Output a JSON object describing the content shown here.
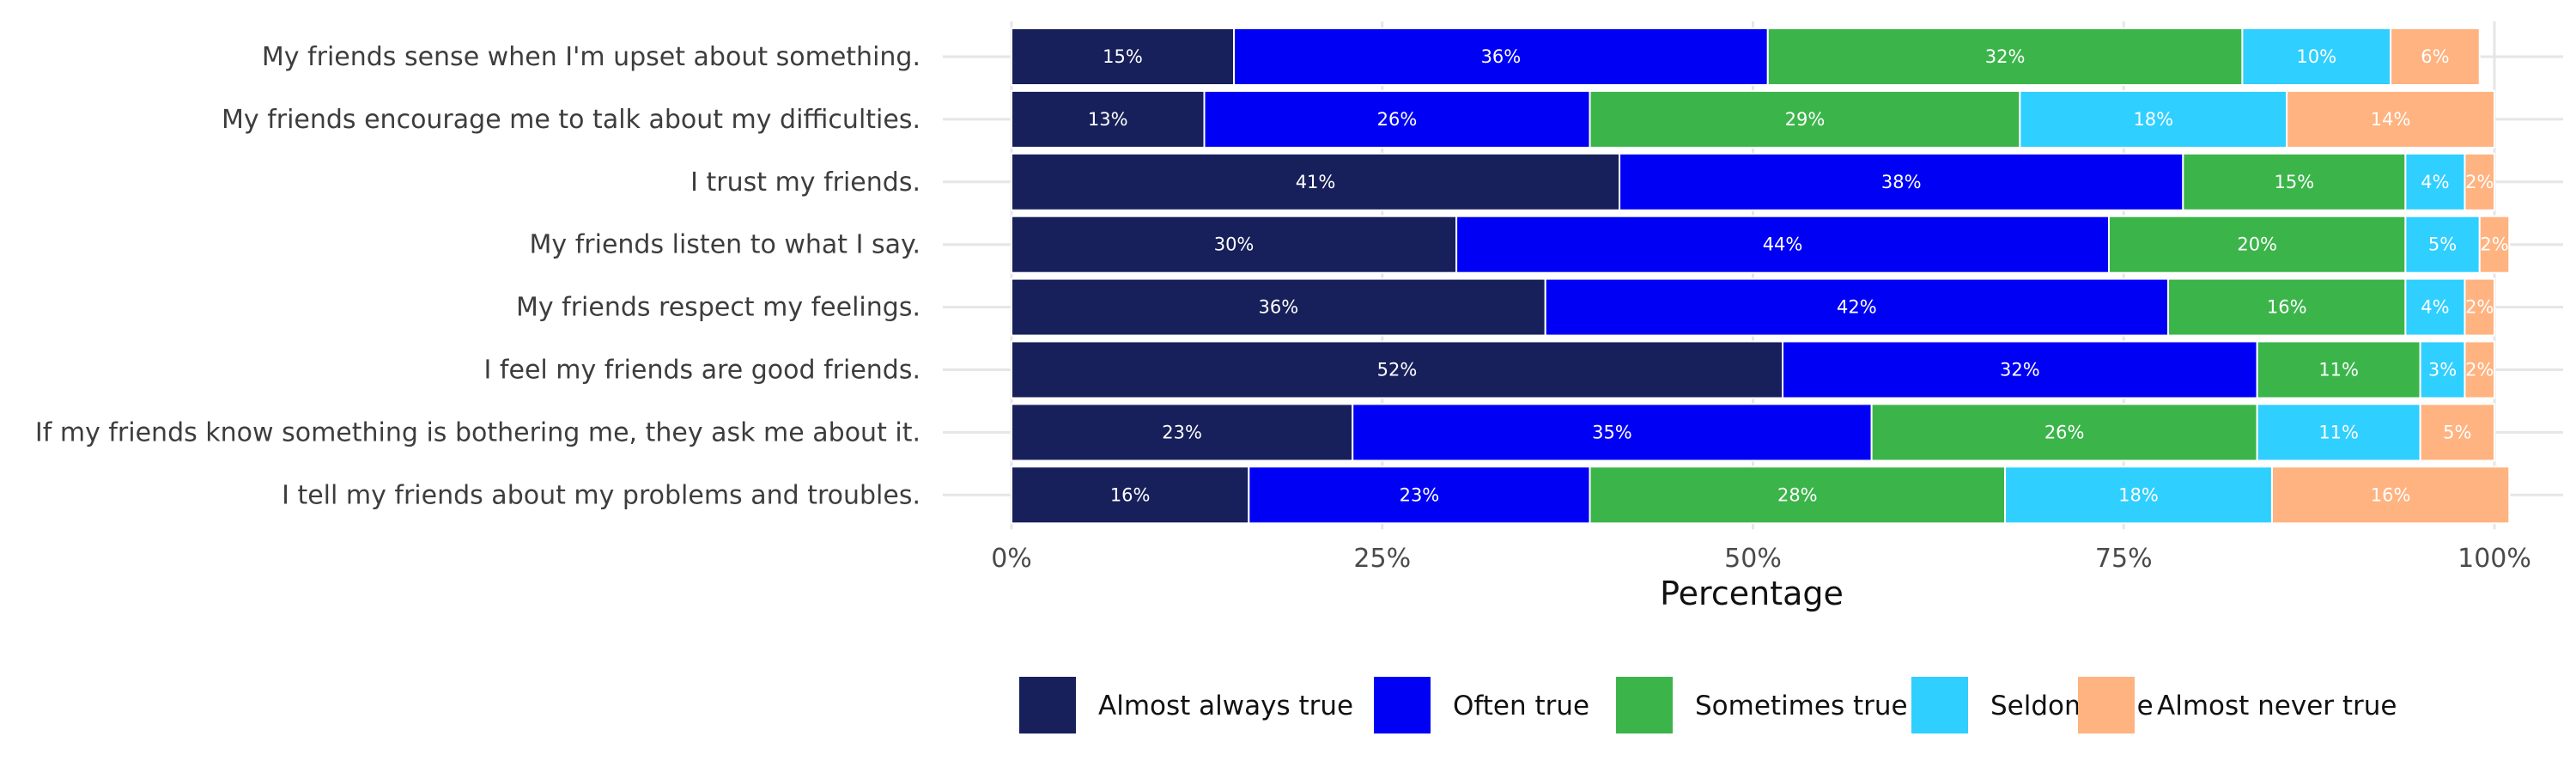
{
  "chart_data": {
    "type": "bar",
    "orientation": "horizontal",
    "stacked": true,
    "xlabel": "Percentage",
    "ylabel": "",
    "xlim": [
      0,
      100
    ],
    "x_ticks": [
      {
        "value": 0,
        "label": "0%"
      },
      {
        "value": 25,
        "label": "25%"
      },
      {
        "value": 50,
        "label": "50%"
      },
      {
        "value": 75,
        "label": "75%"
      },
      {
        "value": 100,
        "label": "100%"
      }
    ],
    "legend_position": "bottom",
    "categories": [
      "My friends sense when I'm upset about something.",
      "My friends encourage me to talk about my difficulties.",
      "I trust my friends.",
      "My friends listen to what I say.",
      "My friends respect my feelings.",
      "I feel my friends are good friends.",
      "If my friends know something is bothering me, they ask me about it.",
      "I tell my friends about my problems and troubles."
    ],
    "series": [
      {
        "name": "Almost always true",
        "color": "#17205a",
        "values": [
          15,
          13,
          41,
          30,
          36,
          52,
          23,
          16
        ],
        "labels": [
          "15%",
          "13%",
          "41%",
          "30%",
          "36%",
          "52%",
          "23%",
          "16%"
        ]
      },
      {
        "name": "Often true",
        "color": "#0000f5",
        "values": [
          36,
          26,
          38,
          44,
          42,
          32,
          35,
          23
        ],
        "labels": [
          "36%",
          "26%",
          "38%",
          "44%",
          "42%",
          "32%",
          "35%",
          "23%"
        ]
      },
      {
        "name": "Sometimes true",
        "color": "#3bb54a",
        "values": [
          32,
          29,
          15,
          20,
          16,
          11,
          26,
          28
        ],
        "labels": [
          "32%",
          "29%",
          "15%",
          "20%",
          "16%",
          "11%",
          "26%",
          "28%"
        ]
      },
      {
        "name": "Seldom true",
        "color": "#2fcfff",
        "values": [
          10,
          18,
          4,
          5,
          4,
          3,
          11,
          18
        ],
        "labels": [
          "10%",
          "18%",
          "4%",
          "5%",
          "4%",
          "3%",
          "11%",
          "18%"
        ]
      },
      {
        "name": "Almost never true",
        "color": "#ffb380",
        "values": [
          6,
          14,
          2,
          2,
          2,
          2,
          5,
          16
        ],
        "labels": [
          "6%",
          "14%",
          "2%",
          "2%",
          "2%",
          "2%",
          "5%",
          "16%"
        ]
      }
    ]
  }
}
